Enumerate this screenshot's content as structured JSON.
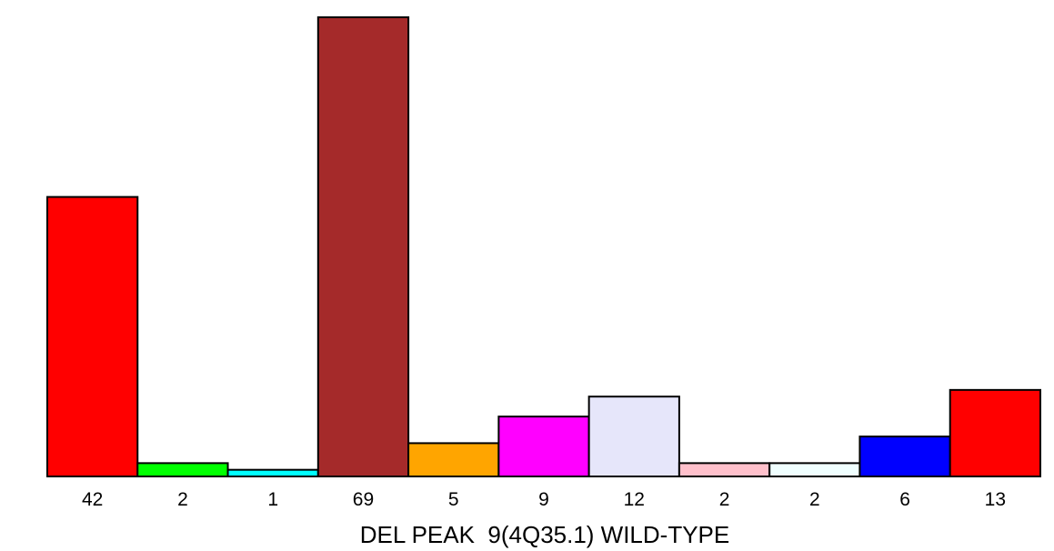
{
  "chart_data": {
    "type": "bar",
    "categories": [
      "42",
      "2",
      "1",
      "69",
      "5",
      "9",
      "12",
      "2",
      "2",
      "6",
      "13"
    ],
    "values": [
      42,
      2,
      1,
      69,
      5,
      9,
      12,
      2,
      2,
      6,
      13
    ],
    "colors": [
      "#ff0000",
      "#00ff00",
      "#00ffff",
      "#a52a2a",
      "#ffa500",
      "#ff00ff",
      "#e6e6fa",
      "#ffc0cb",
      "#f0ffff",
      "#0000ff",
      "#ff0000"
    ],
    "title": "",
    "xlabel": "DEL PEAK  9(4Q35.1) WILD-TYPE",
    "ylabel": "",
    "ylim": [
      0,
      69
    ],
    "grid": false,
    "legend": "none"
  }
}
